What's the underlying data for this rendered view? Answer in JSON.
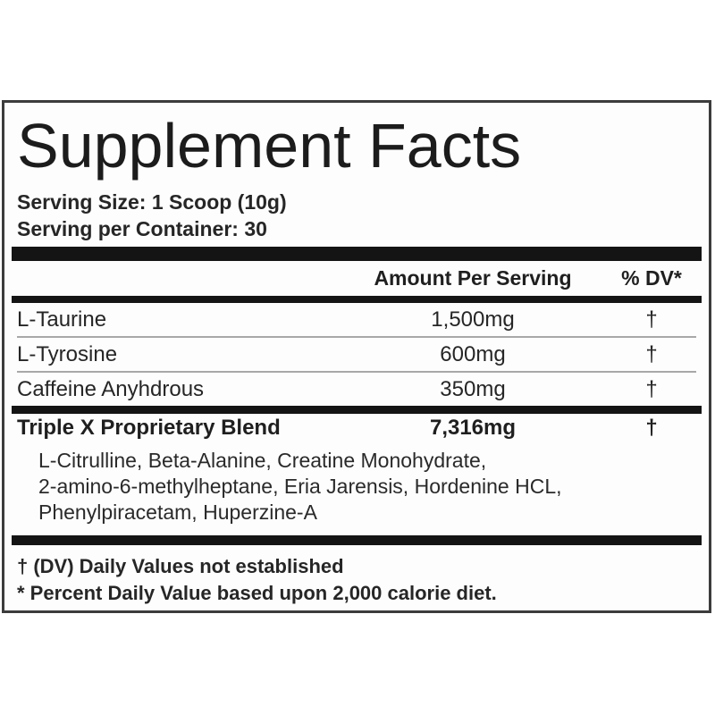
{
  "label": {
    "title": "Supplement Facts",
    "serving_size": "Serving Size: 1 Scoop (10g)",
    "servings_per_container": "Serving per Container: 30",
    "columns": {
      "amount": "Amount Per Serving",
      "dv": "% DV*"
    },
    "rows": [
      {
        "name": "L-Taurine",
        "amount": "1,500mg",
        "dv": "†"
      },
      {
        "name": "L-Tyrosine",
        "amount": "600mg",
        "dv": "†"
      },
      {
        "name": "Caffeine Anyhdrous",
        "amount": "350mg",
        "dv": "†"
      }
    ],
    "blend": {
      "name": "Triple X Proprietary Blend",
      "amount": "7,316mg",
      "dv": "†",
      "ingredient_lines": [
        "L-Citrulline, Beta-Alanine, Creatine Monohydrate,",
        "2-amino-6-methylheptane, Eria Jarensis, Hordenine HCL,",
        "Phenylpiracetam, Huperzine-A"
      ]
    },
    "footnotes": [
      "† (DV) Daily Values not established",
      "* Percent Daily Value based upon 2,000 calorie diet."
    ],
    "colors": {
      "text": "#262626",
      "bar": "#141414",
      "separator": "#a8a8a8",
      "border": "#3c3c3c",
      "background": "#ffffff"
    }
  }
}
